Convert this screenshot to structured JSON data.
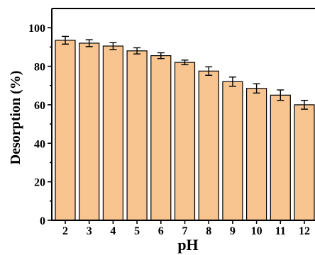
{
  "chart_data": {
    "type": "bar",
    "xlabel": "pH",
    "ylabel": "Desorption (%)",
    "categories": [
      "2",
      "3",
      "4",
      "5",
      "6",
      "7",
      "8",
      "9",
      "10",
      "11",
      "12"
    ],
    "values": [
      93.5,
      92.0,
      90.5,
      88.0,
      85.5,
      82.0,
      77.5,
      72.0,
      68.5,
      65.0,
      60.0
    ],
    "errors": [
      2.0,
      1.8,
      1.8,
      1.6,
      1.5,
      1.2,
      2.2,
      2.4,
      2.4,
      2.7,
      2.3
    ],
    "ylim": [
      0,
      110
    ],
    "yticks": [
      0,
      20,
      40,
      60,
      80,
      100
    ],
    "bar_color": "#f8c48f",
    "grid": false,
    "legend": "none"
  }
}
